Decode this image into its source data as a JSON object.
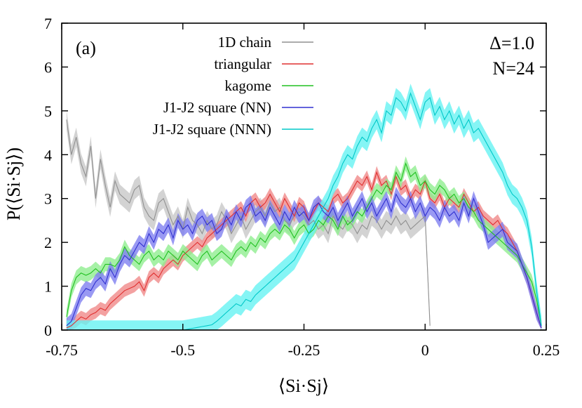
{
  "chart_data": {
    "type": "line",
    "panel_label": "(a)",
    "annotations": [
      "Δ=1.0",
      "N=24"
    ],
    "xlabel": "⟨Si·Sj⟩",
    "ylabel": "P(⟨Si·Sj⟩)",
    "xlim": [
      -0.75,
      0.25
    ],
    "ylim": [
      0,
      7
    ],
    "xticks": [
      "-0.75",
      "-0.5",
      "-0.25",
      "0",
      "0.25"
    ],
    "yticks": [
      "0",
      "1",
      "2",
      "3",
      "4",
      "5",
      "6",
      "7"
    ],
    "grid": false,
    "legend_position": "top-center",
    "x": [
      -0.74,
      -0.73,
      -0.72,
      -0.71,
      -0.7,
      -0.69,
      -0.68,
      -0.67,
      -0.66,
      -0.65,
      -0.64,
      -0.63,
      -0.62,
      -0.61,
      -0.6,
      -0.59,
      -0.58,
      -0.57,
      -0.56,
      -0.55,
      -0.54,
      -0.53,
      -0.52,
      -0.51,
      -0.5,
      -0.49,
      -0.48,
      -0.47,
      -0.46,
      -0.45,
      -0.44,
      -0.43,
      -0.42,
      -0.41,
      -0.4,
      -0.39,
      -0.38,
      -0.37,
      -0.36,
      -0.35,
      -0.34,
      -0.33,
      -0.32,
      -0.31,
      -0.3,
      -0.29,
      -0.28,
      -0.27,
      -0.26,
      -0.25,
      -0.24,
      -0.23,
      -0.22,
      -0.21,
      -0.2,
      -0.19,
      -0.18,
      -0.17,
      -0.16,
      -0.15,
      -0.14,
      -0.13,
      -0.12,
      -0.11,
      -0.1,
      -0.09,
      -0.08,
      -0.07,
      -0.06,
      -0.05,
      -0.04,
      -0.03,
      -0.02,
      -0.01,
      0.0,
      0.01,
      0.02,
      0.03,
      0.04,
      0.05,
      0.06,
      0.07,
      0.08,
      0.09,
      0.1,
      0.11,
      0.12,
      0.13,
      0.14,
      0.15,
      0.16,
      0.17,
      0.18,
      0.19,
      0.2,
      0.21,
      0.22,
      0.23,
      0.24
    ],
    "series": [
      {
        "name": "1D chain",
        "color": "#909090",
        "band": "#c8c8c8",
        "err": 0.22,
        "values": [
          4.8,
          4.0,
          4.4,
          3.8,
          3.5,
          4.2,
          3.0,
          3.9,
          3.3,
          2.8,
          3.4,
          3.1,
          3.0,
          2.9,
          3.2,
          3.3,
          2.8,
          2.6,
          2.5,
          2.9,
          3.0,
          2.7,
          2.4,
          2.6,
          2.3,
          2.8,
          2.5,
          2.4,
          2.2,
          2.5,
          2.3,
          2.4,
          2.7,
          2.5,
          2.2,
          2.4,
          2.6,
          2.3,
          2.5,
          2.7,
          2.8,
          2.6,
          2.9,
          2.7,
          2.8,
          2.5,
          2.4,
          2.6,
          2.7,
          2.6,
          2.4,
          2.5,
          2.3,
          2.4,
          2.2,
          2.6,
          2.4,
          2.3,
          2.5,
          2.4,
          2.2,
          2.4,
          2.3,
          2.6,
          2.5,
          2.3,
          2.5,
          2.4,
          2.6,
          2.4,
          2.5,
          2.3,
          2.4,
          2.5,
          2.6,
          0.1,
          null,
          null,
          null,
          null,
          null,
          null,
          null,
          null,
          null,
          null,
          null,
          null,
          null,
          null,
          null,
          null,
          null,
          null,
          null,
          null,
          null,
          null,
          null
        ]
      },
      {
        "name": "triangular",
        "color": "#e03030",
        "band": "#f08a8a",
        "err": 0.14,
        "values": [
          0.05,
          0.1,
          0.2,
          0.3,
          0.25,
          0.35,
          0.4,
          0.5,
          0.45,
          0.6,
          0.7,
          0.8,
          0.9,
          0.95,
          1.0,
          1.1,
          0.9,
          1.2,
          1.3,
          1.2,
          1.4,
          1.5,
          1.6,
          1.5,
          1.7,
          1.8,
          1.9,
          2.0,
          1.9,
          2.1,
          2.2,
          2.3,
          2.4,
          2.5,
          2.6,
          2.7,
          2.8,
          2.6,
          2.9,
          3.0,
          2.8,
          2.9,
          3.1,
          2.9,
          2.7,
          3.0,
          2.8,
          2.6,
          2.9,
          2.8,
          2.5,
          2.7,
          2.9,
          2.8,
          2.7,
          3.0,
          3.1,
          2.9,
          3.0,
          3.2,
          3.4,
          3.3,
          3.5,
          3.2,
          3.6,
          3.3,
          3.4,
          3.1,
          3.5,
          3.2,
          3.3,
          3.0,
          3.2,
          3.1,
          3.4,
          3.0,
          2.9,
          3.1,
          2.8,
          3.0,
          2.9,
          2.8,
          3.1,
          2.9,
          2.7,
          2.8,
          2.6,
          2.5,
          2.4,
          2.5,
          2.3,
          2.2,
          2.0,
          1.8,
          1.5,
          1.2,
          0.8,
          0.4,
          0.05
        ]
      },
      {
        "name": "kagome",
        "color": "#20c020",
        "band": "#90ee90",
        "err": 0.16,
        "values": [
          0.3,
          0.9,
          1.2,
          1.3,
          1.25,
          1.3,
          1.4,
          1.3,
          1.5,
          1.5,
          1.45,
          1.6,
          1.9,
          1.7,
          1.6,
          1.5,
          1.7,
          1.8,
          1.6,
          1.7,
          1.6,
          1.8,
          1.7,
          1.6,
          1.8,
          1.7,
          1.6,
          1.5,
          1.7,
          1.8,
          1.6,
          1.7,
          1.8,
          1.7,
          1.6,
          1.8,
          1.9,
          1.8,
          2.0,
          1.9,
          2.1,
          2.0,
          2.2,
          2.3,
          2.2,
          2.4,
          2.3,
          2.1,
          2.3,
          2.4,
          2.2,
          2.3,
          2.5,
          2.4,
          2.6,
          2.5,
          2.3,
          2.6,
          2.4,
          2.5,
          2.7,
          2.6,
          2.8,
          3.0,
          3.2,
          3.1,
          3.3,
          3.2,
          3.6,
          3.4,
          3.8,
          3.5,
          3.6,
          3.3,
          3.4,
          3.2,
          3.1,
          3.3,
          3.2,
          3.0,
          3.1,
          2.9,
          3.0,
          2.8,
          2.7,
          2.5,
          2.4,
          2.3,
          2.2,
          2.1,
          2.0,
          1.9,
          1.8,
          1.7,
          1.5,
          1.3,
          1.1,
          0.7,
          0.1
        ]
      },
      {
        "name": "J1-J2 square (NN)",
        "color": "#3030d0",
        "band": "#8080f0",
        "err": 0.17,
        "values": [
          0.1,
          0.2,
          0.5,
          0.8,
          0.95,
          0.9,
          1.1,
          1.2,
          1.05,
          1.4,
          1.2,
          1.5,
          1.7,
          1.6,
          1.8,
          2.0,
          1.9,
          2.2,
          2.0,
          2.3,
          2.2,
          2.4,
          2.1,
          2.5,
          2.3,
          2.4,
          2.2,
          2.5,
          2.6,
          2.4,
          2.5,
          2.2,
          2.3,
          2.6,
          2.4,
          2.7,
          2.5,
          2.8,
          2.9,
          2.6,
          2.7,
          2.5,
          2.8,
          2.6,
          2.4,
          2.7,
          2.5,
          2.8,
          2.6,
          2.7,
          2.5,
          2.8,
          2.9,
          2.7,
          2.6,
          2.8,
          2.5,
          2.7,
          2.9,
          2.6,
          2.8,
          3.0,
          2.7,
          2.9,
          2.6,
          2.8,
          3.0,
          2.7,
          3.1,
          2.9,
          2.8,
          3.0,
          2.7,
          2.9,
          2.6,
          2.8,
          2.7,
          2.5,
          2.8,
          2.6,
          2.7,
          2.5,
          2.9,
          2.6,
          3.0,
          2.7,
          2.4,
          2.0,
          2.1,
          2.2,
          2.3,
          2.0,
          1.9,
          1.8,
          1.5,
          1.2,
          0.8,
          0.4,
          0.05
        ]
      },
      {
        "name": "J1-J2 square (NNN)",
        "color": "#00c8c8",
        "band": "#66f2f2",
        "err": 0.22,
        "values": [
          0.0,
          0.0,
          0.0,
          0.0,
          0.0,
          0.0,
          0.0,
          0.0,
          0.0,
          0.0,
          0.0,
          0.0,
          0.0,
          0.0,
          0.0,
          0.0,
          0.0,
          0.0,
          0.0,
          0.0,
          0.0,
          0.0,
          0.0,
          0.0,
          0.0,
          0.02,
          0.04,
          0.06,
          0.08,
          0.1,
          0.12,
          0.2,
          0.3,
          0.4,
          0.5,
          0.6,
          0.55,
          0.7,
          0.65,
          0.8,
          0.9,
          1.0,
          1.1,
          1.2,
          1.3,
          1.4,
          1.5,
          1.6,
          1.8,
          2.0,
          2.2,
          2.4,
          2.6,
          2.8,
          3.0,
          3.3,
          3.5,
          3.8,
          4.0,
          3.9,
          4.2,
          4.4,
          4.3,
          4.6,
          4.8,
          4.5,
          5.0,
          4.9,
          5.3,
          5.2,
          5.0,
          5.4,
          5.1,
          4.8,
          5.2,
          5.3,
          4.9,
          5.1,
          4.8,
          5.0,
          4.7,
          4.9,
          4.6,
          4.8,
          4.5,
          4.6,
          4.4,
          4.2,
          4.0,
          3.8,
          3.6,
          3.3,
          3.1,
          3.0,
          2.8,
          2.5,
          1.9,
          0.9,
          0.1
        ]
      }
    ]
  }
}
